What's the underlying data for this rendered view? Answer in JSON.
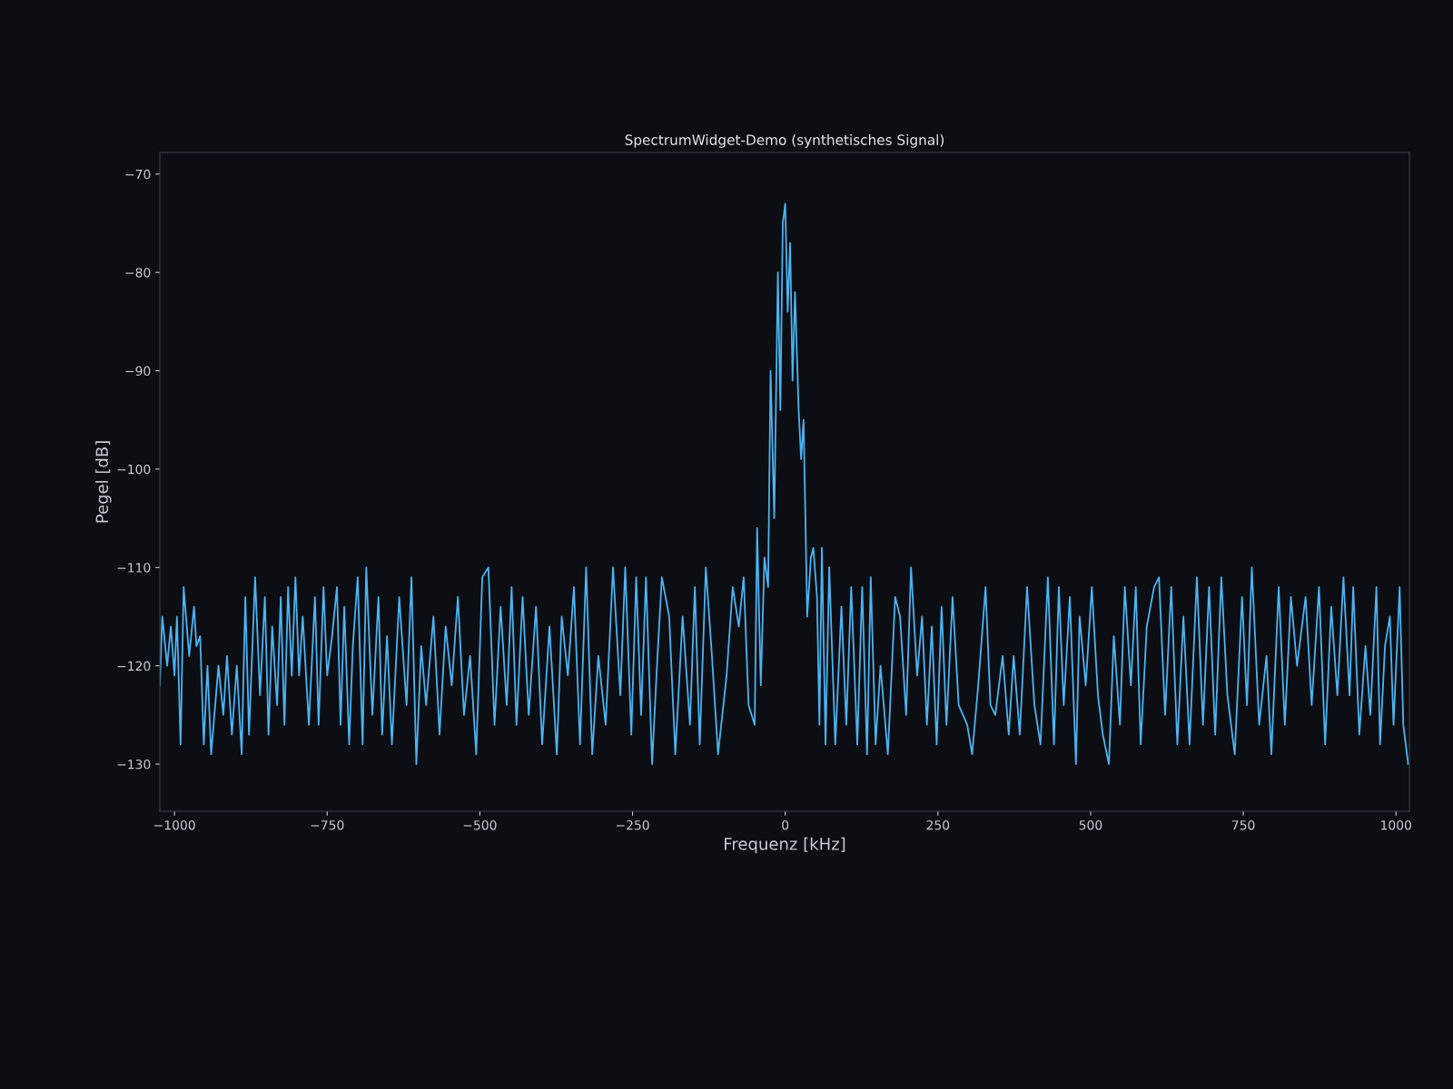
{
  "chart_data": {
    "type": "line",
    "title": "SpectrumWidget-Demo (synthetisches Signal)",
    "xlabel": "Frequenz [kHz]",
    "ylabel": "Pegel [dB]",
    "xlim": [
      -1024,
      1022
    ],
    "xticks": [
      -1000,
      -750,
      -500,
      -250,
      0,
      250,
      500,
      750,
      1000
    ],
    "ylim": [
      -134.8,
      -67.8
    ],
    "yticks": [
      -70,
      -80,
      -90,
      -100,
      -110,
      -120,
      -130
    ],
    "grid": false,
    "legend": false,
    "marker": "none",
    "line_style": "solid",
    "series": [
      {
        "color": "#4cb4f2",
        "x": [
          -1024,
          -1020,
          -1012,
          -1006,
          -1000,
          -996,
          -990,
          -985,
          -976,
          -968,
          -964,
          -958,
          -952,
          -946,
          -940,
          -928,
          -920,
          -914,
          -906,
          -898,
          -890,
          -884,
          -878,
          -868,
          -860,
          -852,
          -846,
          -840,
          -832,
          -826,
          -820,
          -814,
          -808,
          -802,
          -796,
          -790,
          -780,
          -770,
          -764,
          -756,
          -750,
          -742,
          -734,
          -728,
          -722,
          -714,
          -708,
          -700,
          -692,
          -686,
          -676,
          -666,
          -660,
          -652,
          -644,
          -632,
          -620,
          -612,
          -604,
          -596,
          -588,
          -576,
          -566,
          -556,
          -546,
          -536,
          -526,
          -516,
          -506,
          -496,
          -486,
          -476,
          -466,
          -456,
          -448,
          -440,
          -430,
          -420,
          -408,
          -398,
          -386,
          -374,
          -366,
          -356,
          -346,
          -336,
          -326,
          -316,
          -306,
          -294,
          -282,
          -270,
          -262,
          -252,
          -244,
          -236,
          -228,
          -218,
          -210,
          -202,
          -190,
          -180,
          -168,
          -156,
          -148,
          -140,
          -130,
          -120,
          -110,
          -96,
          -86,
          -76,
          -68,
          -60,
          -50,
          -46,
          -40,
          -34,
          -28,
          -24,
          -18,
          -12,
          -8,
          -4,
          0,
          4,
          8,
          12,
          16,
          22,
          26,
          30,
          36,
          42,
          46,
          52,
          56,
          60,
          66,
          72,
          82,
          92,
          100,
          108,
          118,
          126,
          134,
          140,
          148,
          156,
          168,
          180,
          188,
          198,
          206,
          216,
          224,
          232,
          240,
          248,
          256,
          264,
          274,
          284,
          298,
          306,
          316,
          328,
          336,
          344,
          356,
          366,
          374,
          384,
          396,
          408,
          418,
          430,
          440,
          448,
          456,
          466,
          476,
          482,
          492,
          502,
          512,
          520,
          530,
          538,
          548,
          556,
          566,
          574,
          582,
          592,
          604,
          612,
          622,
          632,
          642,
          652,
          662,
          674,
          684,
          694,
          704,
          714,
          724,
          736,
          748,
          756,
          764,
          776,
          788,
          796,
          808,
          818,
          828,
          838,
          852,
          862,
          874,
          884,
          894,
          904,
          914,
          924,
          930,
          940,
          950,
          958,
          968,
          974,
          982,
          990,
          996,
          1006,
          1012,
          1020
        ],
        "values": [
          -122,
          -115,
          -120,
          -116,
          -121,
          -115,
          -128,
          -112,
          -119,
          -114,
          -118,
          -117,
          -128,
          -120,
          -129,
          -120,
          -125,
          -119,
          -127,
          -120,
          -129,
          -113,
          -127,
          -111,
          -123,
          -113,
          -127,
          -116,
          -124,
          -113,
          -126,
          -112,
          -121,
          -111,
          -121,
          -115,
          -126,
          -113,
          -126,
          -112,
          -121,
          -117,
          -112,
          -126,
          -114,
          -128,
          -118,
          -111,
          -128,
          -110,
          -125,
          -113,
          -127,
          -117,
          -128,
          -113,
          -124,
          -111,
          -130,
          -118,
          -124,
          -115,
          -127,
          -116,
          -122,
          -113,
          -125,
          -119,
          -129,
          -111,
          -110,
          -126,
          -114,
          -124,
          -112,
          -126,
          -113,
          -125,
          -114,
          -128,
          -116,
          -129,
          -115,
          -121,
          -112,
          -128,
          -110,
          -129,
          -119,
          -126,
          -110,
          -123,
          -110,
          -127,
          -111,
          -125,
          -111,
          -130,
          -120,
          -111,
          -115,
          -129,
          -115,
          -126,
          -112,
          -128,
          -110,
          -119,
          -129,
          -121,
          -112,
          -116,
          -111,
          -124,
          -126,
          -106,
          -122,
          -109,
          -112,
          -90,
          -105,
          -80,
          -94,
          -75,
          -73,
          -84,
          -77,
          -91,
          -82,
          -94,
          -99,
          -95,
          -115,
          -109,
          -108,
          -113,
          -126,
          -108,
          -128,
          -110,
          -128,
          -114,
          -126,
          -112,
          -128,
          -112,
          -129,
          -111,
          -128,
          -120,
          -129,
          -113,
          -115,
          -125,
          -110,
          -121,
          -115,
          -126,
          -116,
          -128,
          -114,
          -126,
          -113,
          -124,
          -126,
          -129,
          -122,
          -112,
          -124,
          -125,
          -119,
          -127,
          -119,
          -127,
          -112,
          -124,
          -128,
          -111,
          -128,
          -112,
          -124,
          -113,
          -130,
          -115,
          -122,
          -112,
          -123,
          -127,
          -130,
          -117,
          -126,
          -112,
          -122,
          -112,
          -128,
          -116,
          -112,
          -111,
          -125,
          -112,
          -128,
          -115,
          -128,
          -111,
          -126,
          -112,
          -127,
          -111,
          -123,
          -129,
          -113,
          -124,
          -110,
          -126,
          -119,
          -129,
          -112,
          -126,
          -113,
          -120,
          -113,
          -124,
          -112,
          -128,
          -114,
          -123,
          -111,
          -123,
          -112,
          -127,
          -118,
          -125,
          -112,
          -128,
          -118,
          -115,
          -126,
          -112,
          -126,
          -130
        ]
      }
    ]
  }
}
